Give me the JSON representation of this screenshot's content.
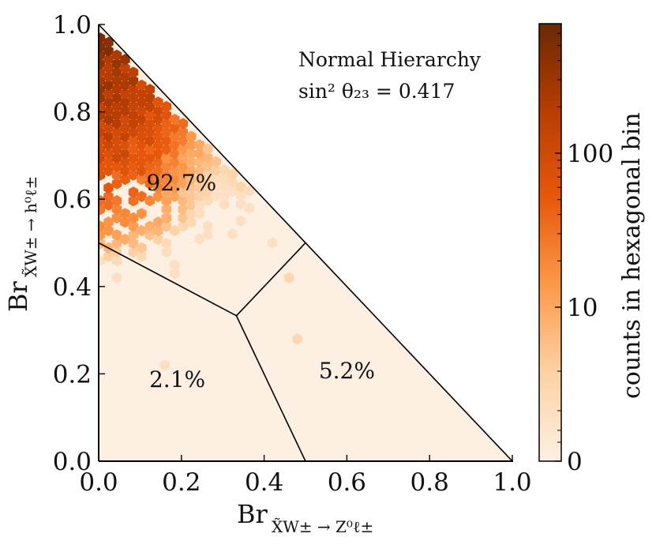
{
  "chart_data": {
    "type": "heatmap",
    "subtype": "ternary-branching-ratio-hexbin",
    "annotation": {
      "line1": "Normal Hierarchy",
      "line2": "sin² θ₂₃ = 0.417"
    },
    "xlabel": {
      "base": "Br",
      "sub": "X̃W± → Z⁰ℓ±"
    },
    "ylabel": {
      "base": "Br",
      "sub": "X̃W± → h⁰ℓ±"
    },
    "xlim": [
      0,
      1
    ],
    "ylim": [
      0,
      1
    ],
    "x_ticks": [
      "0.0",
      "0.2",
      "0.4",
      "0.6",
      "0.8",
      "1.0"
    ],
    "y_ticks": [
      "0.0",
      "0.2",
      "0.4",
      "0.6",
      "0.8",
      "1.0"
    ],
    "boundaries": {
      "outer": [
        [
          0,
          0
        ],
        [
          1,
          0
        ],
        [
          0,
          1
        ]
      ],
      "center": [
        0.333,
        0.333
      ],
      "dividers": [
        [
          0,
          0.5
        ],
        [
          0.5,
          0
        ],
        [
          0.5,
          0.5
        ]
      ]
    },
    "regions": [
      {
        "label": "92.7%",
        "x": 0.2,
        "y": 0.62
      },
      {
        "label": "2.1%",
        "x": 0.19,
        "y": 0.17
      },
      {
        "label": "5.2%",
        "x": 0.6,
        "y": 0.19
      }
    ],
    "colorbar": {
      "label": "counts in hexagonal bin",
      "ticks": [
        "0",
        "10",
        "100"
      ],
      "scale": "log",
      "colors": [
        "#fdf0e3",
        "#fdd2a6",
        "#fd9a4b",
        "#e8580c",
        "#b83d03",
        "#6b2804"
      ]
    },
    "hexbin": {
      "count_range": [
        1,
        700
      ],
      "columns": [
        {
          "x": 0.0,
          "y_min": 0.42,
          "y_max": 0.98,
          "peak": 450
        },
        {
          "x": 0.02,
          "y_min": 0.42,
          "y_max": 0.96,
          "peak": 400
        },
        {
          "x": 0.04,
          "y_min": 0.42,
          "y_max": 0.94,
          "peak": 320
        },
        {
          "x": 0.06,
          "y_min": 0.42,
          "y_max": 0.92,
          "peak": 260
        },
        {
          "x": 0.08,
          "y_min": 0.42,
          "y_max": 0.9,
          "peak": 210
        },
        {
          "x": 0.1,
          "y_min": 0.42,
          "y_max": 0.88,
          "peak": 170
        },
        {
          "x": 0.12,
          "y_min": 0.42,
          "y_max": 0.86,
          "peak": 130
        },
        {
          "x": 0.14,
          "y_min": 0.42,
          "y_max": 0.84,
          "peak": 90
        },
        {
          "x": 0.16,
          "y_min": 0.42,
          "y_max": 0.82,
          "peak": 60
        },
        {
          "x": 0.18,
          "y_min": 0.42,
          "y_max": 0.8,
          "peak": 40
        },
        {
          "x": 0.2,
          "y_min": 0.42,
          "y_max": 0.78,
          "peak": 25
        },
        {
          "x": 0.22,
          "y_min": 0.42,
          "y_max": 0.76,
          "peak": 14
        },
        {
          "x": 0.24,
          "y_min": 0.45,
          "y_max": 0.74,
          "peak": 9
        },
        {
          "x": 0.26,
          "y_min": 0.47,
          "y_max": 0.72,
          "peak": 6
        },
        {
          "x": 0.28,
          "y_min": 0.49,
          "y_max": 0.7,
          "peak": 4
        },
        {
          "x": 0.3,
          "y_min": 0.5,
          "y_max": 0.68,
          "peak": 3
        },
        {
          "x": 0.32,
          "y_min": 0.52,
          "y_max": 0.66,
          "peak": 2
        },
        {
          "x": 0.34,
          "y_min": 0.54,
          "y_max": 0.64,
          "peak": 2
        },
        {
          "x": 0.36,
          "y_min": 0.56,
          "y_max": 0.62,
          "peak": 1
        }
      ],
      "isolated": [
        {
          "x": 0.46,
          "y": 0.42,
          "count": 2
        },
        {
          "x": 0.48,
          "y": 0.28,
          "count": 2
        },
        {
          "x": 0.16,
          "y": 0.22,
          "count": 1
        },
        {
          "x": 0.42,
          "y": 0.5,
          "count": 1
        }
      ]
    }
  }
}
